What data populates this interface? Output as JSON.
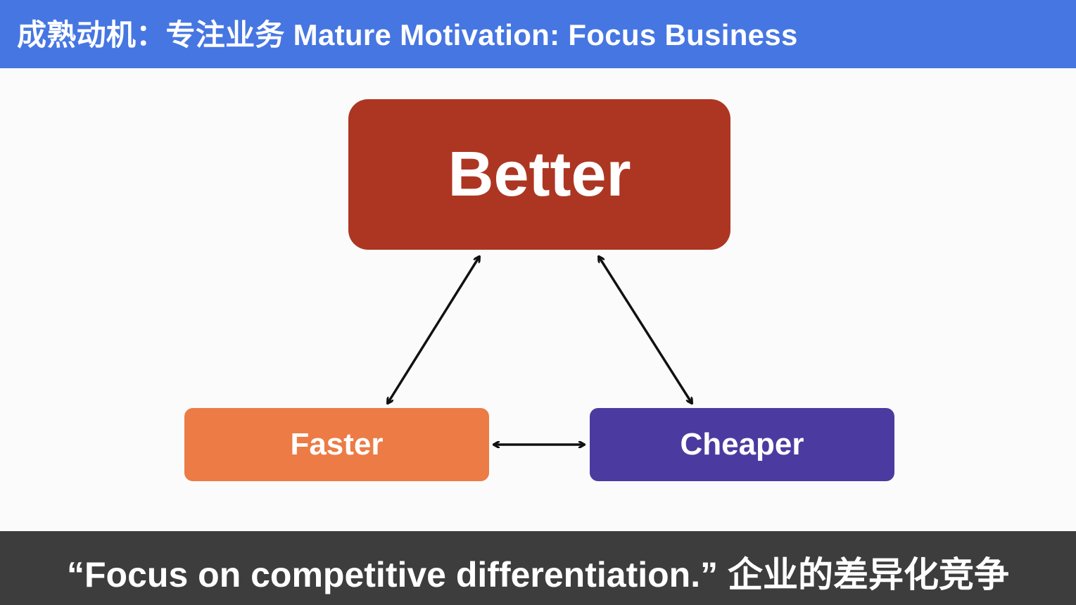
{
  "title_bar": {
    "text": "成熟动机：专注业务 Mature Motivation: Focus Business",
    "background": "#4676e2"
  },
  "diagram": {
    "nodes": {
      "better": {
        "label": "Better",
        "color": "#ad3622"
      },
      "faster": {
        "label": "Faster",
        "color": "#ec7b46"
      },
      "cheaper": {
        "label": "Cheaper",
        "color": "#4b3ba0"
      }
    },
    "edges": [
      {
        "from": "better",
        "to": "faster",
        "type": "bidirectional-arrow"
      },
      {
        "from": "better",
        "to": "cheaper",
        "type": "bidirectional-arrow"
      },
      {
        "from": "faster",
        "to": "cheaper",
        "type": "bidirectional-arrow"
      }
    ],
    "arrow_color": "#111111"
  },
  "caption": {
    "text": "“Focus on competitive differentiation.” 企业的差异化竞争",
    "background": "#3d3d3d"
  }
}
